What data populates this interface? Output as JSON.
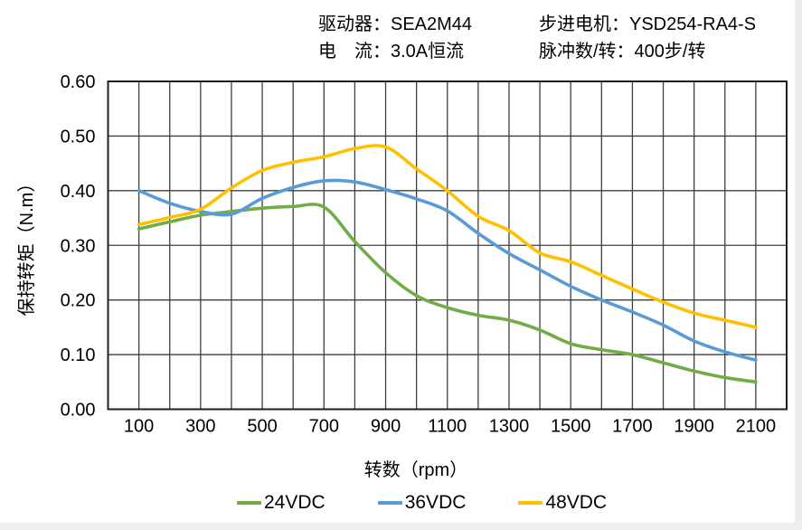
{
  "header": {
    "col1": [
      "驱动器：SEA2M44",
      "电　流：3.0A恒流"
    ],
    "col2": [
      "步进电机：YSD254-RA4-S",
      "脉冲数/转：400步/转"
    ]
  },
  "chart_data": {
    "type": "line",
    "title": "",
    "xlabel": "转数（rpm）",
    "ylabel": "保持转矩（N.m）",
    "xlim": [
      0,
      2200
    ],
    "ylim": [
      0,
      0.6
    ],
    "x_grid_step": 100,
    "y_grid_step": 0.1,
    "x_tick_labels": [
      100,
      300,
      500,
      700,
      900,
      1100,
      1300,
      1500,
      1700,
      1900,
      2100
    ],
    "y_tick_labels": [
      "0.00",
      "0.10",
      "0.20",
      "0.30",
      "0.40",
      "0.50",
      "0.60"
    ],
    "grid": true,
    "legend_position": "bottom",
    "grid_color": "#3f3f3f",
    "border_color": "#1f1f1f",
    "x": [
      100,
      200,
      300,
      400,
      500,
      600,
      700,
      800,
      900,
      1000,
      1100,
      1200,
      1300,
      1400,
      1500,
      1600,
      1700,
      1800,
      1900,
      2000,
      2100
    ],
    "series": [
      {
        "name": "24VDC",
        "color": "#70AD47",
        "values": [
          0.33,
          0.343,
          0.355,
          0.362,
          0.368,
          0.371,
          0.37,
          0.307,
          0.25,
          0.208,
          0.186,
          0.172,
          0.163,
          0.145,
          0.12,
          0.109,
          0.1,
          0.085,
          0.07,
          0.058,
          0.05
        ]
      },
      {
        "name": "36VDC",
        "color": "#5B9BD5",
        "values": [
          0.4,
          0.377,
          0.362,
          0.357,
          0.386,
          0.406,
          0.418,
          0.416,
          0.402,
          0.385,
          0.363,
          0.322,
          0.285,
          0.255,
          0.225,
          0.2,
          0.178,
          0.154,
          0.125,
          0.105,
          0.09
        ]
      },
      {
        "name": "48VDC",
        "color": "#FFC000",
        "values": [
          0.338,
          0.351,
          0.366,
          0.405,
          0.437,
          0.452,
          0.462,
          0.477,
          0.48,
          0.44,
          0.4,
          0.353,
          0.327,
          0.286,
          0.27,
          0.245,
          0.22,
          0.196,
          0.176,
          0.163,
          0.15
        ]
      }
    ]
  }
}
